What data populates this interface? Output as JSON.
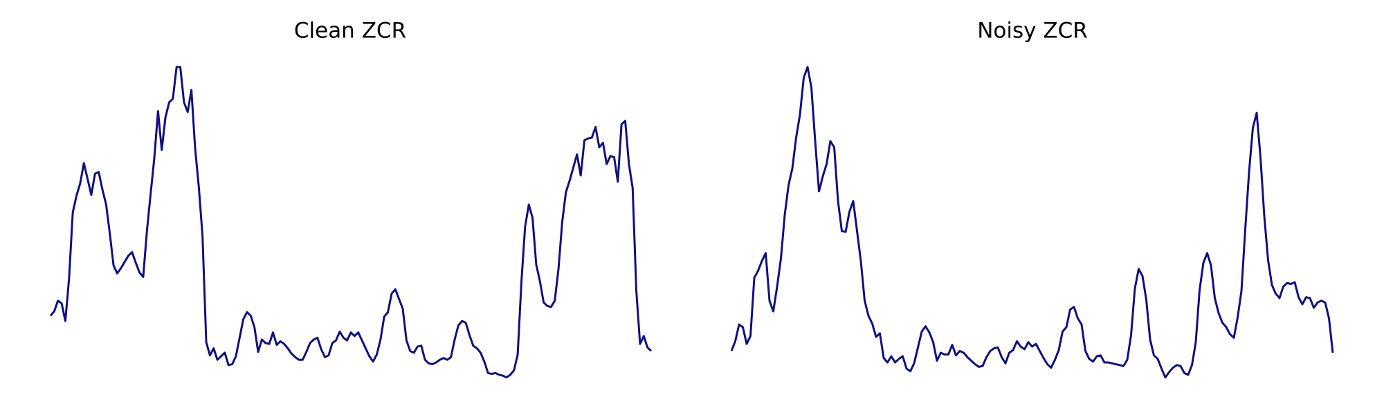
{
  "chart_data": [
    {
      "type": "line",
      "title": "Clean ZCR",
      "color": "#10107f",
      "ylim": [
        0,
        400
      ],
      "values": [
        82,
        87,
        99,
        96,
        76,
        124,
        199,
        218,
        232,
        255,
        237,
        219,
        243,
        245,
        225,
        208,
        175,
        139,
        130,
        136,
        143,
        150,
        154,
        142,
        131,
        126,
        178,
        220,
        261,
        314,
        270,
        307,
        324,
        328,
        364,
        364,
        324,
        313,
        338,
        272,
        228,
        172,
        52,
        37,
        45,
        32,
        36,
        40,
        26,
        27,
        36,
        57,
        78,
        86,
        82,
        69,
        41,
        55,
        51,
        50,
        63,
        49,
        53,
        50,
        45,
        39,
        35,
        32,
        32,
        41,
        51,
        55,
        57,
        44,
        35,
        37,
        51,
        54,
        64,
        57,
        54,
        63,
        59,
        63,
        54,
        45,
        36,
        30,
        38,
        55,
        81,
        86,
        107,
        112,
        101,
        90,
        54,
        42,
        40,
        47,
        48,
        32,
        28,
        27,
        29,
        32,
        34,
        32,
        35,
        55,
        71,
        76,
        74,
        60,
        48,
        45,
        40,
        30,
        17,
        16,
        17,
        15,
        14,
        12,
        15,
        20,
        38,
        120,
        183,
        208,
        193,
        140,
        121,
        97,
        93,
        92,
        99,
        135,
        188,
        222,
        235,
        250,
        265,
        241,
        281,
        283,
        284,
        296,
        273,
        278,
        254,
        263,
        262,
        234,
        299,
        303,
        254,
        227,
        110,
        50,
        59,
        46,
        42
      ]
    },
    {
      "type": "line",
      "title": "Noisy ZCR",
      "color": "#10107f",
      "ylim": [
        0,
        400
      ],
      "values": [
        42,
        53,
        72,
        69,
        50,
        59,
        125,
        133,
        144,
        153,
        99,
        87,
        115,
        147,
        196,
        230,
        249,
        284,
        310,
        352,
        364,
        341,
        280,
        223,
        240,
        254,
        280,
        273,
        212,
        178,
        177,
        200,
        212,
        178,
        144,
        99,
        82,
        73,
        58,
        62,
        34,
        29,
        36,
        29,
        33,
        36,
        22,
        19,
        28,
        46,
        64,
        70,
        63,
        52,
        31,
        40,
        38,
        38,
        49,
        37,
        42,
        40,
        35,
        31,
        27,
        24,
        25,
        35,
        42,
        45,
        46,
        35,
        28,
        40,
        43,
        53,
        47,
        44,
        52,
        47,
        50,
        42,
        34,
        27,
        23,
        32,
        43,
        64,
        69,
        89,
        92,
        79,
        72,
        42,
        33,
        30,
        36,
        37,
        29,
        29,
        28,
        27,
        26,
        25,
        32,
        60,
        113,
        135,
        127,
        100,
        55,
        37,
        33,
        22,
        12,
        18,
        23,
        26,
        25,
        17,
        15,
        26,
        52,
        111,
        142,
        153,
        139,
        102,
        85,
        74,
        69,
        61,
        57,
        80,
        110,
        180,
        245,
        295,
        312,
        262,
        195,
        145,
        117,
        107,
        102,
        115,
        119,
        118,
        120,
        103,
        95,
        103,
        102,
        91,
        97,
        99,
        97,
        79,
        40
      ]
    }
  ]
}
